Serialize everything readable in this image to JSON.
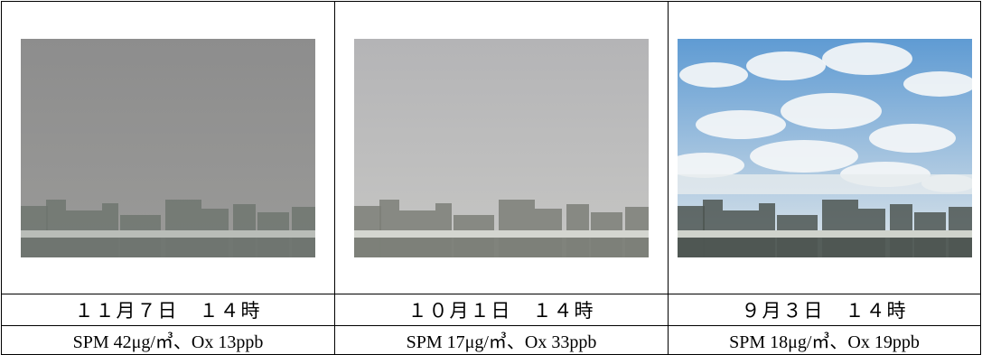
{
  "photos": [
    {
      "alt": "hazy gray sky over city skyline",
      "sky_top": "#8d8d8d",
      "sky_bottom": "#9a9a98",
      "city": "#6f7570",
      "road": "#b9bdb8"
    },
    {
      "alt": "light gray overcast sky over city skyline",
      "sky_top": "#b4b4b6",
      "sky_bottom": "#c6c6c4",
      "city": "#7c7f78",
      "road": "#d4d6d0"
    },
    {
      "alt": "blue sky with white clouds over city skyline",
      "sky_top": "#5f9bd3",
      "sky_bottom": "#dfe6ea",
      "city": "#4e5652",
      "road": "#cfd3cc"
    }
  ],
  "dates": [
    "１１月７日　１４時",
    "１０月１日　１４時",
    "９月３日　１４時"
  ],
  "measurements": [
    "SPM 42μg/㎥、Ox 13ppb",
    "SPM 17μg/㎥、Ox 33ppb",
    "SPM 18μg/㎥、Ox 19ppb"
  ]
}
